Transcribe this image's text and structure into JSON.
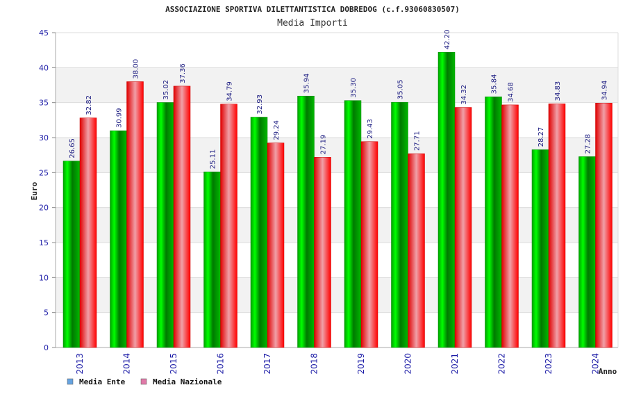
{
  "chart_data": {
    "type": "bar",
    "title": "ASSOCIAZIONE SPORTIVA DILETTANTISTICA DOBREDOG (c.f.93060830507)",
    "subtitle": "Media Importi",
    "xlabel": "Anno",
    "ylabel": "Euro",
    "ylim": [
      0,
      45
    ],
    "yticks": [
      0,
      5,
      10,
      15,
      20,
      25,
      30,
      35,
      40,
      45
    ],
    "grid": true,
    "legend_position": "bottom-left",
    "categories": [
      "2013",
      "2014",
      "2015",
      "2016",
      "2017",
      "2018",
      "2019",
      "2020",
      "2021",
      "2022",
      "2023",
      "2024"
    ],
    "series": [
      {
        "name": "Media Ente",
        "color": "#00c000",
        "legend_color": "#66a3e0",
        "values": [
          26.65,
          30.99,
          35.02,
          25.11,
          32.93,
          35.94,
          35.3,
          35.05,
          42.2,
          35.84,
          28.27,
          27.28
        ],
        "labels": [
          "26.65",
          "30.99",
          "35.02",
          "25.11",
          "32.93",
          "35.94",
          "35.30",
          "35.05",
          "42.20",
          "35.84",
          "28.27",
          "27.28"
        ]
      },
      {
        "name": "Media Nazionale",
        "color": "#ff1a1a",
        "legend_color": "#e07aa8",
        "values": [
          32.82,
          38.0,
          37.36,
          34.79,
          29.24,
          27.19,
          29.43,
          27.71,
          34.32,
          34.68,
          34.83,
          34.94
        ],
        "labels": [
          "32.82",
          "38.00",
          "37.36",
          "34.79",
          "29.24",
          "27.19",
          "29.43",
          "27.71",
          "34.32",
          "34.68",
          "34.83",
          "34.94"
        ]
      }
    ]
  }
}
